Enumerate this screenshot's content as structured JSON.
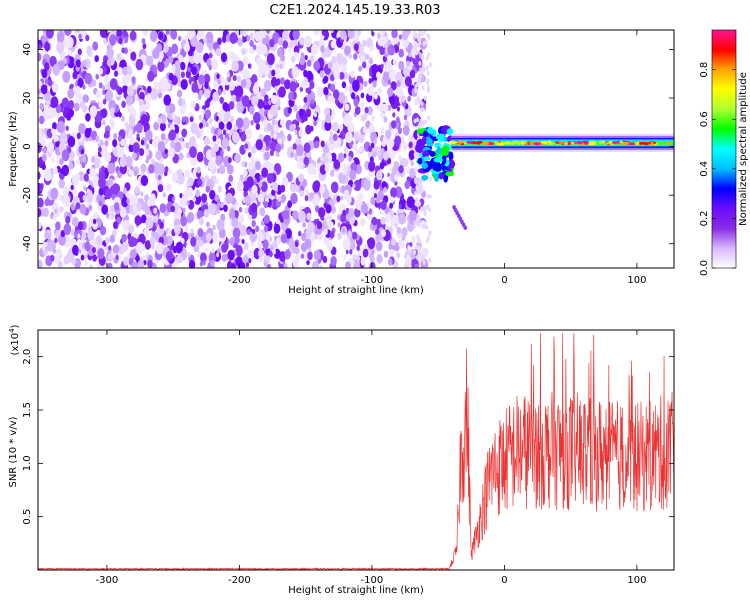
{
  "title": "C2E1.2024.145.19.33.R03",
  "chart_data": [
    {
      "type": "heatmap",
      "xlabel": "Height of straight line (km)",
      "ylabel": "Frequency (Hz)",
      "xlim": [
        -352,
        128
      ],
      "ylim": [
        -50,
        48
      ],
      "xticks": [
        -300,
        -200,
        -100,
        0,
        100
      ],
      "yticks": [
        -40,
        -20,
        0,
        20,
        40
      ],
      "colorbar": {
        "label": "Normalized spectral amplitude",
        "range": [
          0,
          0.96
        ],
        "ticks": [
          "0.0",
          "0.2",
          "0.4",
          "0.6",
          "0.8"
        ],
        "colors": [
          "#ffffff",
          "#d6b8ff",
          "#8a2be2",
          "#6a0dff",
          "#0000ff",
          "#00bfff",
          "#00ffff",
          "#00ff00",
          "#adff2f",
          "#ffff00",
          "#ffa500",
          "#ff0000",
          "#ff1493"
        ]
      },
      "description_regions": [
        {
          "x_range": [
            -352,
            -62
          ],
          "y_range": [
            -50,
            48
          ],
          "level": "noise"
        },
        {
          "x_range": [
            -65,
            -40
          ],
          "y_range": [
            -14,
            8
          ],
          "level": "transition"
        },
        {
          "x_range": [
            -40,
            128
          ],
          "y_center": 1.5,
          "level": "signal"
        }
      ]
    },
    {
      "type": "line",
      "xlabel": "Height of straight line (km)",
      "ylabel": "SNR (10 * v/v)",
      "scale_label": "(x10",
      "scale_exp": "4",
      "scale_close": ")",
      "xlim": [
        -352,
        128
      ],
      "ylim": [
        0,
        2.25
      ],
      "xticks": [
        -300,
        -200,
        -100,
        0,
        100
      ],
      "yticks": [
        "0.5",
        "1.0",
        "1.5",
        "2.0"
      ],
      "series_color": "#ee3333",
      "envelope": [
        {
          "x": -352,
          "y": 0.01
        },
        {
          "x": -42,
          "y": 0.01
        },
        {
          "x": -36,
          "y": 0.25
        },
        {
          "x": -33,
          "y": 1.5
        },
        {
          "x": -28,
          "y": 2.1
        },
        {
          "x": -25,
          "y": 0.2
        },
        {
          "x": -18,
          "y": 0.7
        },
        {
          "x": -10,
          "y": 1.3
        },
        {
          "x": 10,
          "y": 1.6
        },
        {
          "x": 50,
          "y": 1.6
        },
        {
          "x": 100,
          "y": 1.5
        },
        {
          "x": 128,
          "y": 1.6
        }
      ]
    }
  ]
}
